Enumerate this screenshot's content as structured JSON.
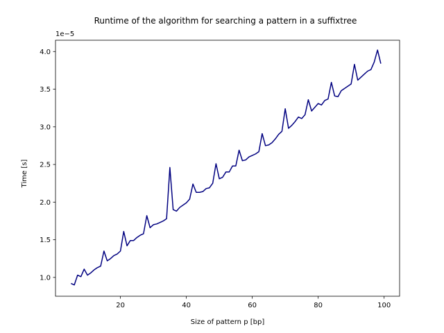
{
  "chart_data": {
    "type": "line",
    "title": "Runtime of the algorithm for searching a pattern in a suffixtree",
    "xlabel": "Size of pattern p [bp]",
    "ylabel": "Time [s]",
    "y_offset_label": "1e−5",
    "xlim": [
      0.3,
      104.7
    ],
    "ylim": [
      7.5e-06,
      4.15e-05
    ],
    "x_ticks": [
      20,
      40,
      60,
      80,
      100
    ],
    "x_tick_labels": [
      "20",
      "40",
      "60",
      "80",
      "100"
    ],
    "y_ticks": [
      1e-05,
      1.5e-05,
      2e-05,
      2.5e-05,
      3e-05,
      3.5e-05,
      4e-05
    ],
    "y_tick_labels": [
      "1.0",
      "1.5",
      "2.0",
      "2.5",
      "3.0",
      "3.5",
      "4.0"
    ],
    "grid": false,
    "line_color": "#000080",
    "x": [
      5,
      6,
      7,
      8,
      9,
      10,
      11,
      12,
      13,
      14,
      15,
      16,
      17,
      18,
      19,
      20,
      21,
      22,
      23,
      24,
      25,
      26,
      27,
      28,
      29,
      30,
      31,
      32,
      33,
      34,
      35,
      36,
      37,
      38,
      39,
      40,
      41,
      42,
      43,
      44,
      45,
      46,
      47,
      48,
      49,
      50,
      51,
      52,
      53,
      54,
      55,
      56,
      57,
      58,
      59,
      60,
      61,
      62,
      63,
      64,
      65,
      66,
      67,
      68,
      69,
      70,
      71,
      72,
      73,
      74,
      75,
      76,
      77,
      78,
      79,
      80,
      81,
      82,
      83,
      84,
      85,
      86,
      87,
      88,
      89,
      90,
      91,
      92,
      93,
      94,
      95,
      96,
      97,
      98,
      99
    ],
    "y": [
      9.2e-06,
      9e-06,
      1.03e-05,
      1.01e-05,
      1.11e-05,
      1.03e-05,
      1.06e-05,
      1.1e-05,
      1.13e-05,
      1.15e-05,
      1.35e-05,
      1.22e-05,
      1.25e-05,
      1.29e-05,
      1.31e-05,
      1.35e-05,
      1.61e-05,
      1.42e-05,
      1.49e-05,
      1.49e-05,
      1.53e-05,
      1.56e-05,
      1.58e-05,
      1.82e-05,
      1.66e-05,
      1.7e-05,
      1.71e-05,
      1.73e-05,
      1.75e-05,
      1.78e-05,
      2.46e-05,
      1.9e-05,
      1.88e-05,
      1.93e-05,
      1.96e-05,
      1.99e-05,
      2.04e-05,
      2.24e-05,
      2.13e-05,
      2.13e-05,
      2.14e-05,
      2.18e-05,
      2.19e-05,
      2.25e-05,
      2.51e-05,
      2.31e-05,
      2.33e-05,
      2.4e-05,
      2.4e-05,
      2.48e-05,
      2.48e-05,
      2.69e-05,
      2.55e-05,
      2.56e-05,
      2.6e-05,
      2.62e-05,
      2.64e-05,
      2.67e-05,
      2.91e-05,
      2.75e-05,
      2.76e-05,
      2.79e-05,
      2.84e-05,
      2.9e-05,
      2.94e-05,
      3.24e-05,
      2.98e-05,
      3.02e-05,
      3.07e-05,
      3.13e-05,
      3.11e-05,
      3.16e-05,
      3.36e-05,
      3.21e-05,
      3.26e-05,
      3.31e-05,
      3.29e-05,
      3.35e-05,
      3.37e-05,
      3.59e-05,
      3.41e-05,
      3.4e-05,
      3.48e-05,
      3.51e-05,
      3.54e-05,
      3.57e-05,
      3.83e-05,
      3.62e-05,
      3.66e-05,
      3.7e-05,
      3.74e-05,
      3.76e-05,
      3.86e-05,
      4.02e-05,
      3.84e-05
    ]
  }
}
